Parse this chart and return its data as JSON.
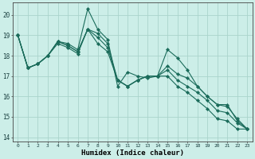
{
  "xlabel": "Humidex (Indice chaleur)",
  "background_color": "#cceee8",
  "grid_color": "#aad4cc",
  "line_color": "#1a6b5a",
  "xlim": [
    -0.5,
    23.5
  ],
  "ylim": [
    13.8,
    20.6
  ],
  "yticks": [
    14,
    15,
    16,
    17,
    18,
    19,
    20
  ],
  "xticks": [
    0,
    1,
    2,
    3,
    4,
    5,
    6,
    7,
    8,
    9,
    10,
    11,
    12,
    13,
    14,
    15,
    16,
    17,
    18,
    19,
    20,
    21,
    22,
    23
  ],
  "series": [
    [
      19.0,
      17.4,
      17.6,
      18.0,
      18.7,
      18.6,
      18.3,
      20.3,
      19.3,
      18.8,
      16.5,
      17.2,
      17.0,
      16.9,
      17.0,
      18.3,
      17.9,
      17.3,
      16.5,
      16.0,
      15.6,
      15.6,
      14.8,
      14.4
    ],
    [
      19.0,
      17.4,
      17.6,
      18.0,
      18.7,
      18.5,
      18.2,
      19.3,
      19.1,
      18.6,
      16.8,
      16.5,
      16.8,
      17.0,
      17.0,
      17.5,
      17.1,
      16.9,
      16.5,
      16.0,
      15.6,
      15.5,
      14.9,
      14.4
    ],
    [
      19.0,
      17.4,
      17.6,
      18.0,
      18.7,
      18.5,
      18.2,
      19.3,
      18.9,
      18.4,
      16.8,
      16.5,
      16.8,
      17.0,
      17.0,
      17.3,
      16.8,
      16.5,
      16.2,
      15.8,
      15.3,
      15.2,
      14.7,
      14.4
    ],
    [
      19.0,
      17.4,
      17.6,
      18.0,
      18.6,
      18.4,
      18.1,
      19.3,
      18.6,
      18.2,
      16.8,
      16.5,
      16.8,
      17.0,
      17.0,
      17.0,
      16.5,
      16.2,
      15.8,
      15.4,
      14.9,
      14.8,
      14.4,
      14.4
    ]
  ],
  "marker": "D",
  "markersize": 2.2,
  "linewidth": 0.8
}
